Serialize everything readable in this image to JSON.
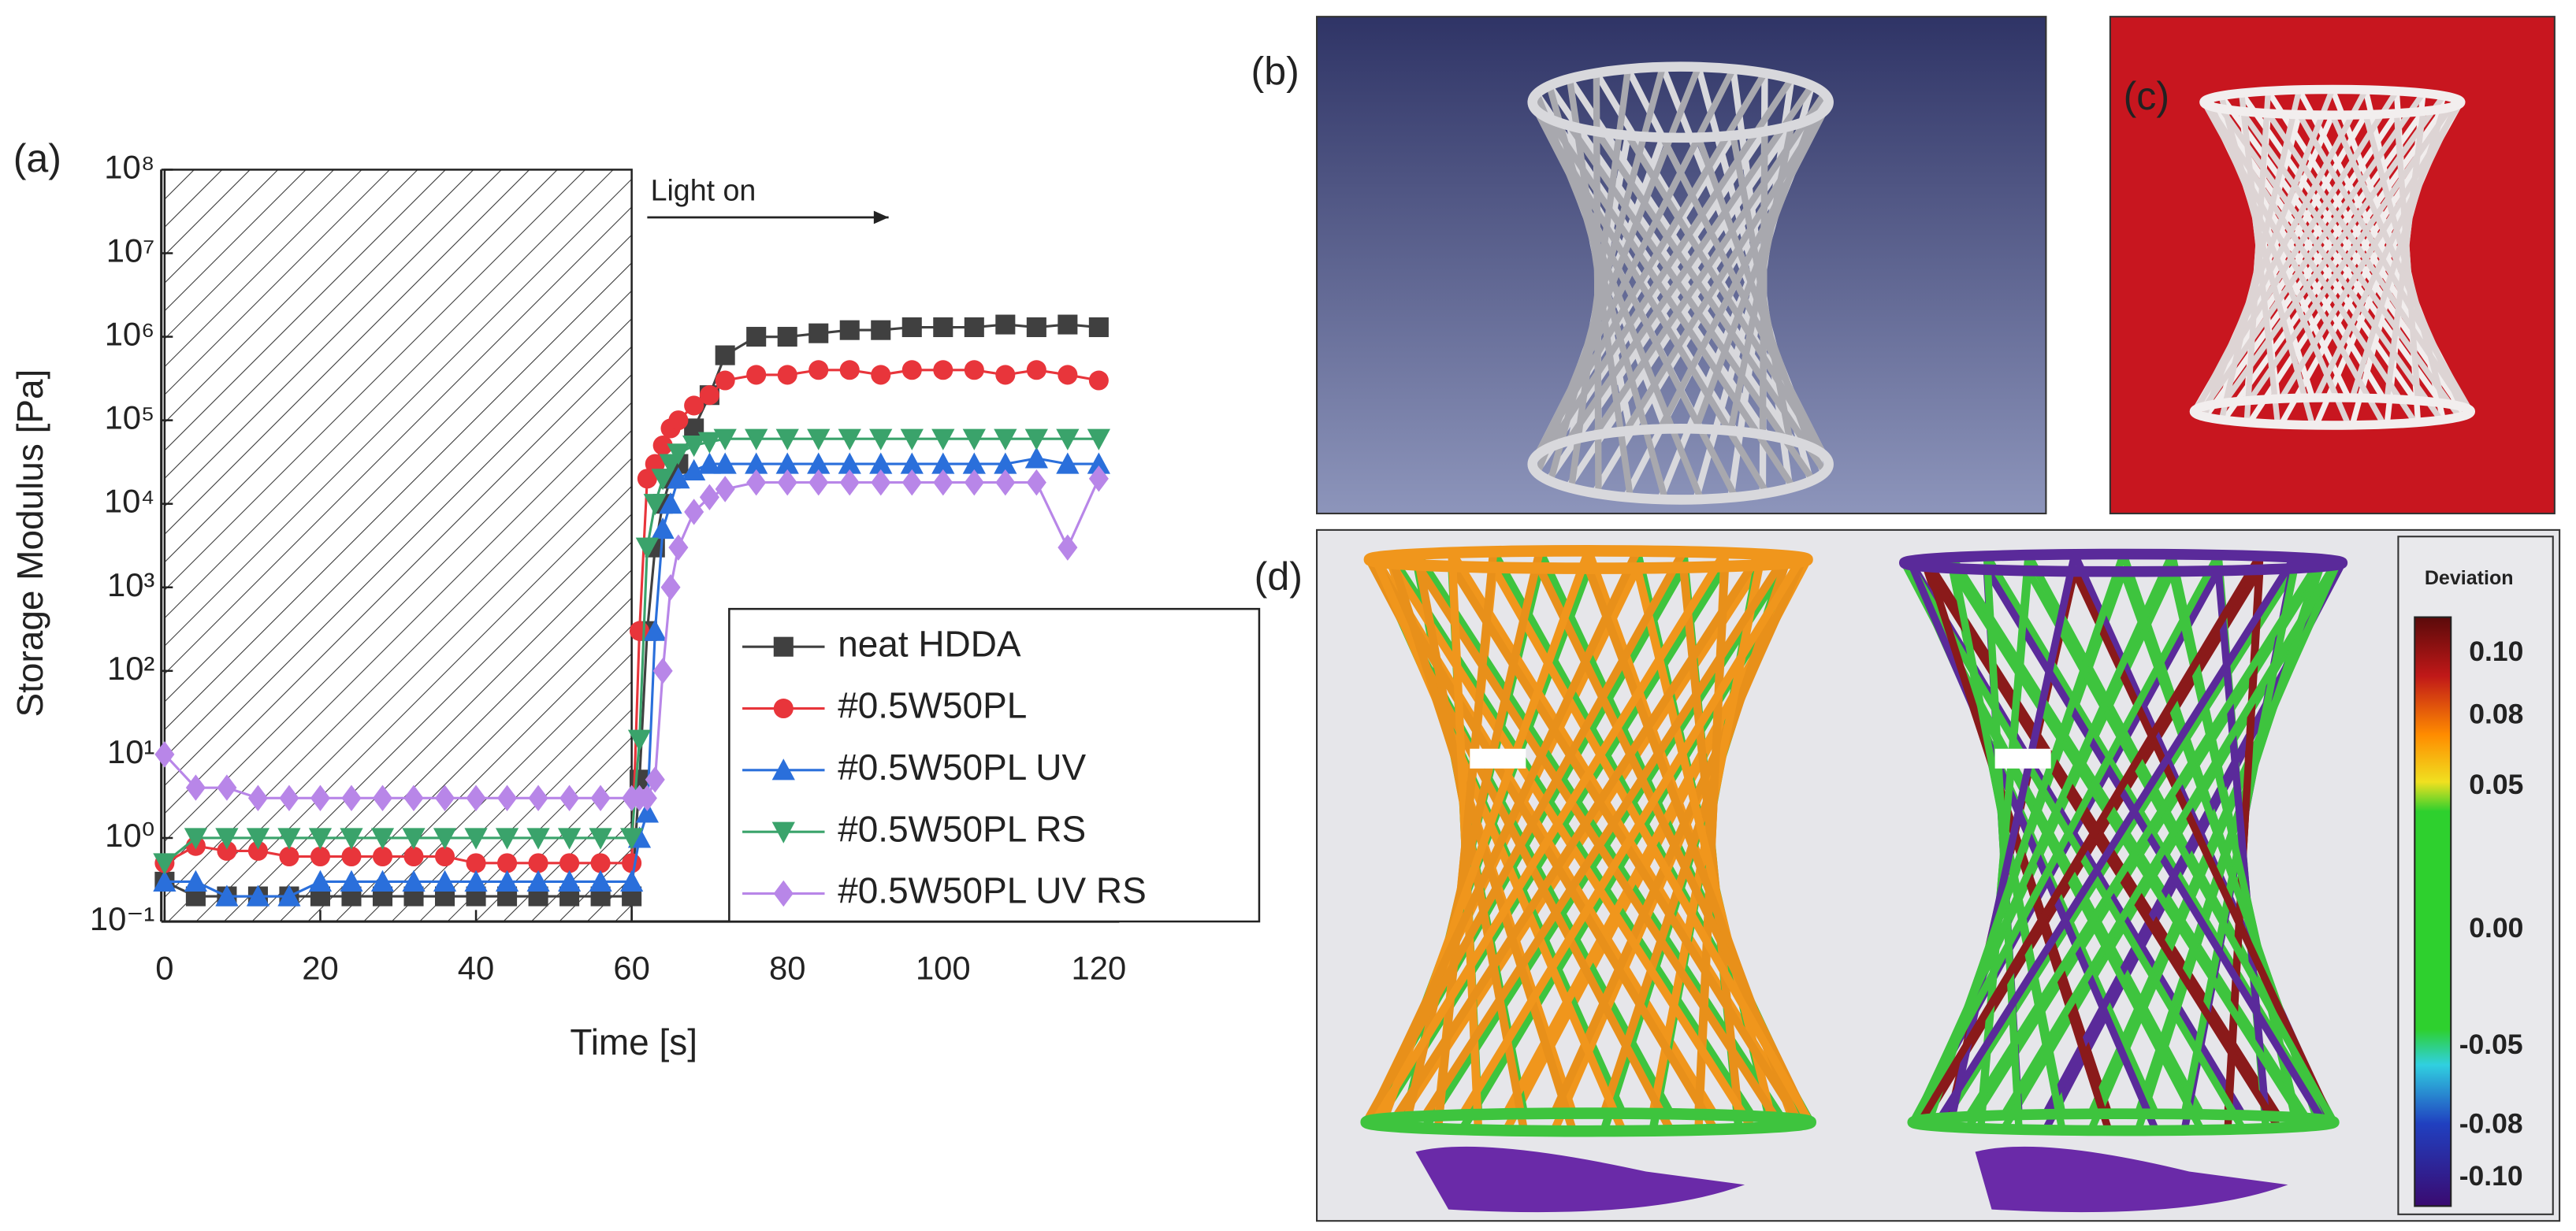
{
  "chart_data": {
    "type": "line",
    "panel_label": "(a)",
    "ylabel": "Storage Modulus [Pa]",
    "xlabel": "Time [s]",
    "yscale": "log",
    "xlim": [
      0,
      122
    ],
    "ylim": [
      0.1,
      100000000
    ],
    "xticks": [
      0,
      20,
      40,
      60,
      80,
      100,
      120
    ],
    "yticks": [
      {
        "value": 100000000,
        "label": "10⁸"
      },
      {
        "value": 10000000,
        "label": "10⁷"
      },
      {
        "value": 1000000,
        "label": "10⁶"
      },
      {
        "value": 100000,
        "label": "10⁵"
      },
      {
        "value": 10000,
        "label": "10⁴"
      },
      {
        "value": 1000,
        "label": "10³"
      },
      {
        "value": 100,
        "label": "10²"
      },
      {
        "value": 10,
        "label": "10¹"
      },
      {
        "value": 1,
        "label": "10⁰"
      },
      {
        "value": 0.1,
        "label": "10⁻¹"
      }
    ],
    "shaded_x": [
      0,
      60
    ],
    "annotation": {
      "text": "Light on",
      "x": [
        62,
        93
      ]
    },
    "legend": "lower right",
    "x": [
      0,
      4,
      8,
      12,
      16,
      20,
      24,
      28,
      32,
      36,
      40,
      44,
      48,
      52,
      56,
      60,
      61,
      62,
      63,
      64,
      65,
      66,
      68,
      70,
      72,
      76,
      80,
      84,
      88,
      92,
      96,
      100,
      104,
      108,
      112,
      116,
      120
    ],
    "series": [
      {
        "name": "neat HDDA",
        "color": "#404040",
        "marker": "square",
        "values": [
          0.3,
          0.2,
          0.2,
          0.2,
          0.2,
          0.2,
          0.2,
          0.2,
          0.2,
          0.2,
          0.2,
          0.2,
          0.2,
          0.2,
          0.2,
          0.2,
          5,
          300,
          3000,
          10000,
          20000,
          30000,
          80000,
          200000,
          600000,
          1000000,
          1000000,
          1100000,
          1200000,
          1200000,
          1300000,
          1300000,
          1300000,
          1400000,
          1300000,
          1400000,
          1300000
        ]
      },
      {
        "name": "#0.5W50PL",
        "color": "#e8353b",
        "marker": "circle",
        "values": [
          0.5,
          0.8,
          0.7,
          0.7,
          0.6,
          0.6,
          0.6,
          0.6,
          0.6,
          0.6,
          0.5,
          0.5,
          0.5,
          0.5,
          0.5,
          0.5,
          300,
          20000,
          30000,
          50000,
          80000,
          100000,
          150000,
          200000,
          300000,
          350000,
          350000,
          400000,
          400000,
          350000,
          400000,
          400000,
          400000,
          350000,
          400000,
          350000,
          300000
        ]
      },
      {
        "name": "#0.5W50PL UV",
        "color": "#2a6fdb",
        "marker": "triangle-up",
        "values": [
          0.3,
          0.3,
          0.2,
          0.2,
          0.2,
          0.3,
          0.3,
          0.3,
          0.3,
          0.3,
          0.3,
          0.3,
          0.3,
          0.3,
          0.3,
          0.3,
          1,
          2,
          300,
          5000,
          10000,
          20000,
          25000,
          30000,
          30000,
          30000,
          30000,
          30000,
          30000,
          30000,
          30000,
          30000,
          30000,
          30000,
          35000,
          30000,
          30000
        ]
      },
      {
        "name": "#0.5W50PL RS",
        "color": "#3aa36b",
        "marker": "triangle-down",
        "values": [
          0.5,
          1,
          1,
          1,
          1,
          1,
          1,
          1,
          1,
          1,
          1,
          1,
          1,
          1,
          1,
          1,
          15,
          3000,
          10000,
          20000,
          30000,
          40000,
          50000,
          55000,
          60000,
          60000,
          60000,
          60000,
          60000,
          60000,
          60000,
          60000,
          60000,
          60000,
          60000,
          60000,
          60000
        ]
      },
      {
        "name": "#0.5W50PL UV RS",
        "color": "#b886e8",
        "marker": "diamond",
        "values": [
          10,
          4,
          4,
          3,
          3,
          3,
          3,
          3,
          3,
          3,
          3,
          3,
          3,
          3,
          3,
          3,
          3,
          3,
          5,
          100,
          1000,
          3000,
          8000,
          12000,
          15000,
          18000,
          18000,
          18000,
          18000,
          18000,
          18000,
          18000,
          18000,
          18000,
          18000,
          3000,
          20000
        ]
      }
    ]
  },
  "panels": {
    "b": "(b)",
    "c": "(c)",
    "d": "(d)"
  },
  "colorbar": {
    "title": "Deviation",
    "labels": [
      "0.10",
      "0.08",
      "0.05",
      "0.00",
      "-0.05",
      "-0.08",
      "-0.10"
    ]
  }
}
